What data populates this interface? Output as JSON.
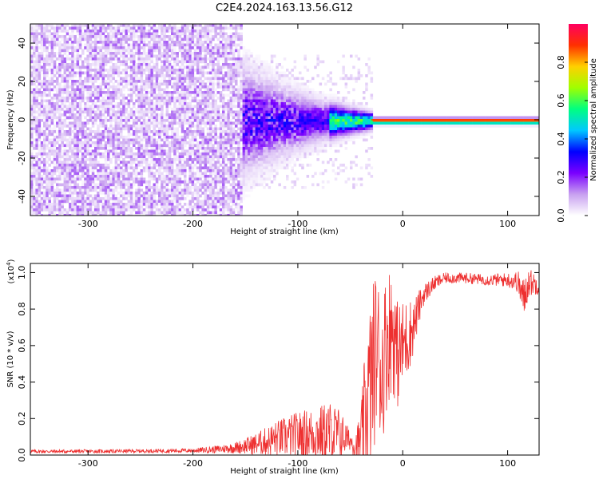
{
  "title": "C2E4.2024.163.13.56.G12",
  "chart_data": [
    {
      "type": "heatmap",
      "xlabel": "Height of straight line (km)",
      "ylabel": "Frequency (Hz)",
      "xlim": [
        -355,
        130
      ],
      "ylim": [
        -50,
        50
      ],
      "xticks": [
        -300,
        -200,
        -100,
        0,
        100
      ],
      "yticks": [
        -40,
        -20,
        0,
        20,
        40
      ],
      "xtick_labels": [
        "-300",
        "-200",
        "-100",
        "0",
        "100"
      ],
      "ytick_labels": [
        "-40",
        "-20",
        "0",
        "20",
        "40"
      ],
      "noise_floor_end_km": -155,
      "signal_band_start_km": -150,
      "carrier_frequency_hz": 0,
      "colorbar": {
        "label": "Normalized spectral amplitude",
        "range": [
          0,
          1
        ],
        "ticks": [
          0.0,
          0.2,
          0.4,
          0.6,
          0.8
        ],
        "tick_labels": [
          "0.0",
          "0.2",
          "0.4",
          "0.6",
          "0.8"
        ],
        "colors": [
          "#ffffff",
          "#c8a0f0",
          "#7a00ff",
          "#0000ff",
          "#00c8ff",
          "#00ff80",
          "#a0ff00",
          "#ffd000",
          "#ff3000",
          "#ff0060"
        ]
      }
    },
    {
      "type": "line",
      "xlabel": "Height of straight line (km)",
      "ylabel": "SNR (10 * v/v)",
      "y_multiplier": "(x10",
      "y_multiplier_exp": "4",
      "y_multiplier_close": ")",
      "xlim": [
        -355,
        130
      ],
      "ylim": [
        0,
        1.05
      ],
      "xticks": [
        -300,
        -200,
        -100,
        0,
        100
      ],
      "yticks": [
        0.0,
        0.2,
        0.4,
        0.6,
        0.8,
        1.0
      ],
      "xtick_labels": [
        "-300",
        "-200",
        "-100",
        "0",
        "100"
      ],
      "ytick_labels": [
        "0.0",
        "0.2",
        "0.4",
        "0.6",
        "0.8",
        "1.0"
      ],
      "series": [
        {
          "name": "SNR",
          "color": "#ee3030",
          "x": [
            -355,
            -300,
            -250,
            -200,
            -180,
            -160,
            -140,
            -120,
            -100,
            -80,
            -70,
            -60,
            -50,
            -45,
            -40,
            -35,
            -30,
            -25,
            -20,
            -15,
            -10,
            -5,
            0,
            5,
            10,
            15,
            20,
            30,
            40,
            60,
            80,
            100,
            110,
            115,
            120,
            130
          ],
          "y": [
            0.02,
            0.02,
            0.022,
            0.025,
            0.03,
            0.04,
            0.06,
            0.09,
            0.11,
            0.12,
            0.12,
            0.11,
            0.08,
            0.05,
            0.07,
            0.25,
            0.4,
            0.6,
            0.45,
            0.65,
            0.7,
            0.55,
            0.6,
            0.65,
            0.7,
            0.8,
            0.88,
            0.94,
            0.97,
            0.97,
            0.96,
            0.96,
            0.95,
            0.85,
            0.95,
            0.93
          ],
          "spread": [
            0.01,
            0.01,
            0.01,
            0.012,
            0.02,
            0.03,
            0.06,
            0.1,
            0.13,
            0.15,
            0.18,
            0.15,
            0.05,
            0.08,
            0.18,
            0.4,
            0.5,
            0.45,
            0.4,
            0.4,
            0.35,
            0.3,
            0.25,
            0.22,
            0.15,
            0.1,
            0.06,
            0.04,
            0.03,
            0.03,
            0.03,
            0.04,
            0.06,
            0.12,
            0.08,
            0.05
          ]
        }
      ]
    }
  ]
}
